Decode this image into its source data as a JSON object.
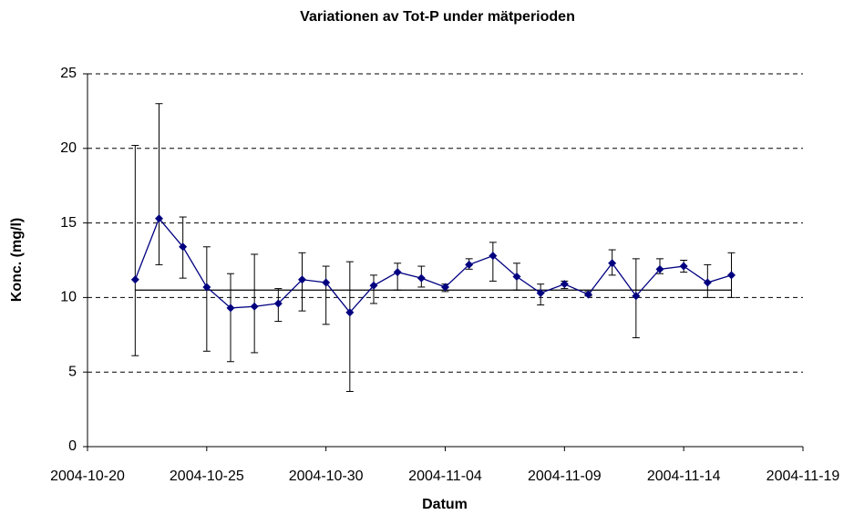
{
  "chart_data": {
    "type": "line",
    "title": "Variationen av Tot-P under mätperioden",
    "x_label": "Datum",
    "y_label": "Konc. (mg/l)",
    "x": [
      "2004-10-22",
      "2004-10-23",
      "2004-10-24",
      "2004-10-25",
      "2004-10-26",
      "2004-10-27",
      "2004-10-28",
      "2004-10-29",
      "2004-10-30",
      "2004-10-31",
      "2004-11-01",
      "2004-11-02",
      "2004-11-03",
      "2004-11-04",
      "2004-11-05",
      "2004-11-06",
      "2004-11-07",
      "2004-11-08",
      "2004-11-09",
      "2004-11-10",
      "2004-11-11",
      "2004-11-12",
      "2004-11-13",
      "2004-11-14",
      "2004-11-15",
      "2004-11-16"
    ],
    "values": [
      11.2,
      15.3,
      13.4,
      10.7,
      9.3,
      9.4,
      9.6,
      11.2,
      11.0,
      9.0,
      10.8,
      11.7,
      11.3,
      10.7,
      12.2,
      12.8,
      11.4,
      10.3,
      10.9,
      10.2,
      12.3,
      10.1,
      11.9,
      12.1,
      11.0,
      11.5
    ],
    "low": [
      6.1,
      12.2,
      11.3,
      6.4,
      5.7,
      6.3,
      8.4,
      9.1,
      8.2,
      3.7,
      9.6,
      10.5,
      10.7,
      10.4,
      11.9,
      11.1,
      10.5,
      9.5,
      10.6,
      10.1,
      11.5,
      7.3,
      11.6,
      11.7,
      10.0,
      10.0
    ],
    "high": [
      20.2,
      23.0,
      15.4,
      13.4,
      11.6,
      12.9,
      10.6,
      13.0,
      12.1,
      12.4,
      11.5,
      12.3,
      12.1,
      10.9,
      12.6,
      13.7,
      12.3,
      10.9,
      11.1,
      10.4,
      13.2,
      12.6,
      12.6,
      12.5,
      12.2,
      13.0
    ],
    "color": "#000080",
    "reference_line": 10.5,
    "xlim": [
      "2004-10-20",
      "2004-11-19"
    ],
    "xticks": [
      "2004-10-20",
      "2004-10-25",
      "2004-10-30",
      "2004-11-04",
      "2004-11-09",
      "2004-11-14",
      "2004-11-19"
    ],
    "ylim": [
      0,
      25
    ],
    "yticks": [
      0,
      5,
      10,
      15,
      20,
      25
    ],
    "grid": true
  }
}
